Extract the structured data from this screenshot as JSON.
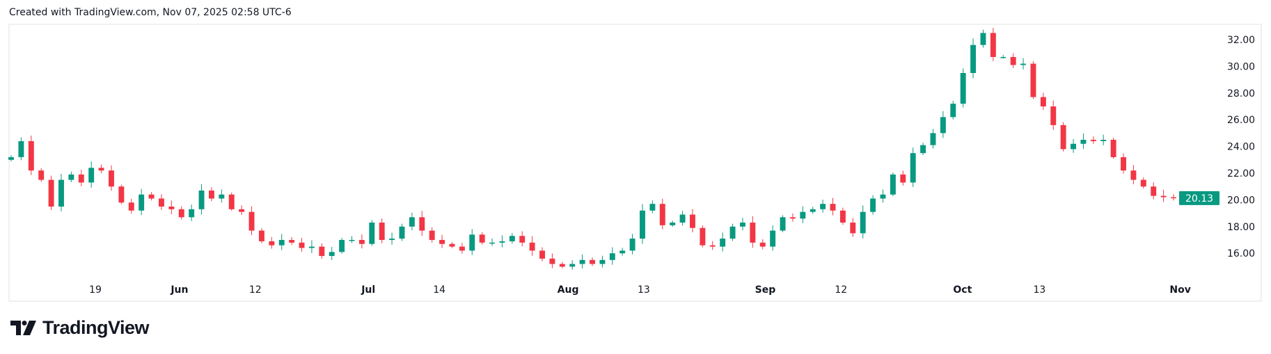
{
  "header": {
    "text": "Created with TradingView.com, Nov 07, 2025 02:58 UTC-6"
  },
  "logo": {
    "text": "TradingView"
  },
  "colors": {
    "up": "#089981",
    "down": "#f23645",
    "axis_text": "#131722",
    "border": "#f0f0f0"
  },
  "chart_data": {
    "type": "candlestick",
    "title": "",
    "xlabel": "",
    "ylabel": "",
    "ylim": [
      14,
      33.2
    ],
    "y_ticks": [
      "16.00",
      "18.00",
      "20.00",
      "22.00",
      "24.00",
      "26.00",
      "28.00",
      "30.00",
      "32.00"
    ],
    "x_ticks": [
      {
        "label": "19",
        "bold": false,
        "pos": 0.07
      },
      {
        "label": "Jun",
        "bold": true,
        "pos": 0.14
      },
      {
        "label": "12",
        "bold": false,
        "pos": 0.203
      },
      {
        "label": "Jul",
        "bold": true,
        "pos": 0.297
      },
      {
        "label": "14",
        "bold": false,
        "pos": 0.356
      },
      {
        "label": "Aug",
        "bold": true,
        "pos": 0.463
      },
      {
        "label": "13",
        "bold": false,
        "pos": 0.526
      },
      {
        "label": "Sep",
        "bold": true,
        "pos": 0.627
      },
      {
        "label": "12",
        "bold": false,
        "pos": 0.69
      },
      {
        "label": "Oct",
        "bold": true,
        "pos": 0.791
      },
      {
        "label": "13",
        "bold": false,
        "pos": 0.855
      },
      {
        "label": "Nov",
        "bold": true,
        "pos": 0.972
      }
    ],
    "last_price": "20.13",
    "closes": [
      23.2,
      24.4,
      22.2,
      21.5,
      19.5,
      21.5,
      21.9,
      21.3,
      22.4,
      22.2,
      21.0,
      19.8,
      19.2,
      20.4,
      20.1,
      19.5,
      19.3,
      18.7,
      19.3,
      20.7,
      20.1,
      20.4,
      19.3,
      19.1,
      17.7,
      16.9,
      16.6,
      17.0,
      16.8,
      16.4,
      16.5,
      15.8,
      16.1,
      17.0,
      17.0,
      16.7,
      18.3,
      17.0,
      17.1,
      18.0,
      18.7,
      17.7,
      17.0,
      16.7,
      16.5,
      16.2,
      17.4,
      16.8,
      16.8,
      16.9,
      17.3,
      16.8,
      16.2,
      15.6,
      15.2,
      15.0,
      15.2,
      15.5,
      15.2,
      15.5,
      16.0,
      16.2,
      17.1,
      19.2,
      19.7,
      18.1,
      18.3,
      18.9,
      17.9,
      16.6,
      16.5,
      17.1,
      18.0,
      18.3,
      16.8,
      16.5,
      17.7,
      18.7,
      18.6,
      19.1,
      19.3,
      19.7,
      19.2,
      18.3,
      17.5,
      19.1,
      20.1,
      20.4,
      21.9,
      21.3,
      23.5,
      24.1,
      25.0,
      26.2,
      27.2,
      29.5,
      31.6,
      32.5,
      30.7,
      30.7,
      30.1,
      30.2,
      27.7,
      27.0,
      25.6,
      23.8,
      24.2,
      24.5,
      24.4,
      24.5,
      23.2,
      22.2,
      21.5,
      21.0,
      20.3,
      20.2,
      20.13
    ]
  }
}
